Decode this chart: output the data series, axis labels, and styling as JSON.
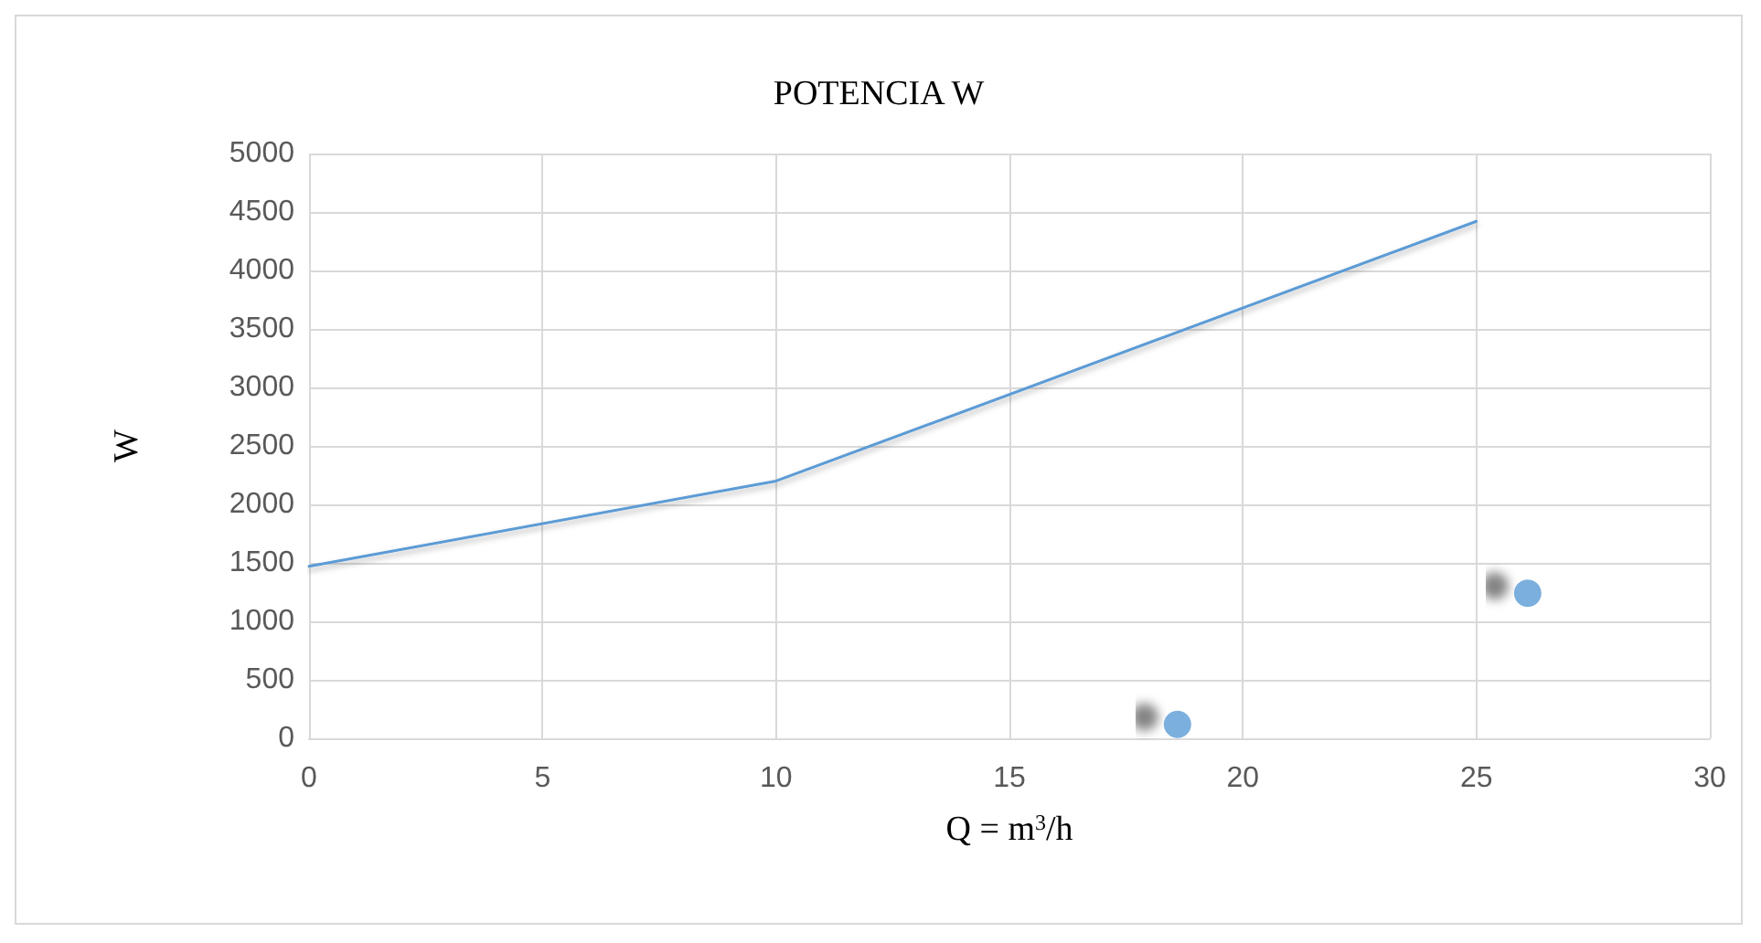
{
  "chart_data": {
    "type": "line",
    "title": "POTENCIA W",
    "xlabel": "Q = m$^{3}$/h",
    "ylabel": "W",
    "xlim": [
      0,
      30
    ],
    "xticks": [
      0,
      5,
      10,
      15,
      20,
      25,
      30
    ],
    "ylim": [
      0,
      5000
    ],
    "yticks": [
      0,
      500,
      1000,
      1500,
      2000,
      2500,
      3000,
      3500,
      4000,
      4500,
      5000
    ],
    "grid": true,
    "series": [
      {
        "color": "#5b9bd5",
        "x": [
          0,
          10,
          25
        ],
        "values": [
          1470,
          2200,
          4420
        ],
        "marker": "none"
      },
      {
        "type": "scatter",
        "color": "#5b9bd5",
        "x": [
          18.6,
          26.1
        ],
        "values": [
          120,
          1240
        ],
        "marker": "circle"
      }
    ]
  }
}
